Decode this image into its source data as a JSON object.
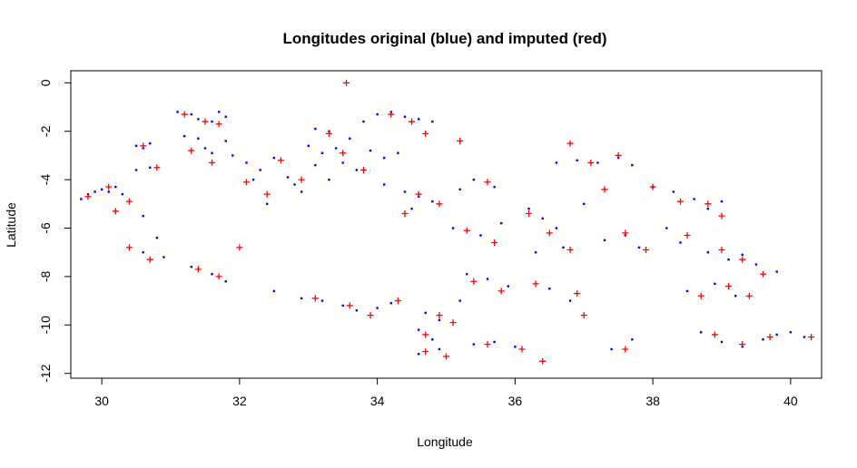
{
  "chart_data": {
    "type": "scatter",
    "title": "Longitudes original (blue) and imputed (red)",
    "xlabel": "Longitude",
    "ylabel": "Latitude",
    "xlim": [
      29.55,
      40.45
    ],
    "ylim": [
      -12.2,
      0.5
    ],
    "xticks": [
      "30",
      "32",
      "34",
      "36",
      "38",
      "40"
    ],
    "yticks": [
      "0",
      "-2",
      "-4",
      "-6",
      "-8",
      "-10",
      "-12"
    ],
    "grid": false,
    "legend": "none",
    "colors": {
      "original": "#0000ff",
      "imputed": "#ff0000"
    },
    "markers": {
      "original": "dot",
      "imputed": "plus"
    },
    "series": [
      {
        "role": "original",
        "values": [
          [
            29.7,
            -4.8
          ],
          [
            29.8,
            -4.6
          ],
          [
            29.9,
            -4.5
          ],
          [
            30.0,
            -4.4
          ],
          [
            30.1,
            -4.5
          ],
          [
            30.2,
            -4.3
          ],
          [
            30.3,
            -4.6
          ],
          [
            30.5,
            -2.6
          ],
          [
            30.6,
            -2.7
          ],
          [
            30.7,
            -2.5
          ],
          [
            30.5,
            -3.6
          ],
          [
            30.7,
            -3.5
          ],
          [
            30.6,
            -5.5
          ],
          [
            30.8,
            -6.4
          ],
          [
            30.6,
            -7.0
          ],
          [
            30.9,
            -7.2
          ],
          [
            31.1,
            -1.2
          ],
          [
            31.3,
            -1.3
          ],
          [
            31.4,
            -1.5
          ],
          [
            31.2,
            -2.2
          ],
          [
            31.4,
            -2.3
          ],
          [
            31.7,
            -1.2
          ],
          [
            31.8,
            -1.4
          ],
          [
            31.6,
            -1.6
          ],
          [
            31.5,
            -2.7
          ],
          [
            31.8,
            -2.4
          ],
          [
            31.6,
            -2.9
          ],
          [
            31.9,
            -3.0
          ],
          [
            31.3,
            -7.6
          ],
          [
            31.6,
            -7.9
          ],
          [
            31.8,
            -8.2
          ],
          [
            32.1,
            -3.3
          ],
          [
            32.3,
            -3.6
          ],
          [
            32.5,
            -3.1
          ],
          [
            32.2,
            -4.0
          ],
          [
            32.7,
            -3.9
          ],
          [
            32.9,
            -4.5
          ],
          [
            32.4,
            -5.0
          ],
          [
            32.8,
            -4.2
          ],
          [
            32.5,
            -8.6
          ],
          [
            32.9,
            -8.9
          ],
          [
            33.1,
            -1.9
          ],
          [
            33.3,
            -2.0
          ],
          [
            33.0,
            -2.6
          ],
          [
            33.2,
            -2.9
          ],
          [
            33.4,
            -2.7
          ],
          [
            33.6,
            -2.3
          ],
          [
            33.1,
            -3.4
          ],
          [
            33.5,
            -3.3
          ],
          [
            33.3,
            -4.0
          ],
          [
            33.7,
            -3.6
          ],
          [
            33.8,
            -1.6
          ],
          [
            34.0,
            -1.3
          ],
          [
            34.2,
            -1.2
          ],
          [
            34.4,
            -1.4
          ],
          [
            34.6,
            -1.5
          ],
          [
            34.8,
            -1.6
          ],
          [
            33.9,
            -2.8
          ],
          [
            34.1,
            -3.1
          ],
          [
            34.3,
            -2.9
          ],
          [
            33.2,
            -9.0
          ],
          [
            33.5,
            -9.2
          ],
          [
            33.7,
            -9.4
          ],
          [
            34.0,
            -9.3
          ],
          [
            34.2,
            -9.1
          ],
          [
            34.1,
            -4.2
          ],
          [
            34.4,
            -4.5
          ],
          [
            34.6,
            -4.7
          ],
          [
            34.8,
            -4.9
          ],
          [
            34.5,
            -5.2
          ],
          [
            34.7,
            -9.5
          ],
          [
            34.9,
            -9.8
          ],
          [
            34.6,
            -10.2
          ],
          [
            34.8,
            -10.6
          ],
          [
            34.6,
            -11.2
          ],
          [
            34.9,
            -11.0
          ],
          [
            35.2,
            -4.4
          ],
          [
            35.4,
            -4.0
          ],
          [
            35.7,
            -4.3
          ],
          [
            35.1,
            -6.0
          ],
          [
            35.5,
            -6.3
          ],
          [
            35.8,
            -5.8
          ],
          [
            35.3,
            -7.9
          ],
          [
            35.6,
            -8.1
          ],
          [
            35.9,
            -8.4
          ],
          [
            35.2,
            -9.0
          ],
          [
            35.4,
            -10.8
          ],
          [
            35.7,
            -10.7
          ],
          [
            36.0,
            -10.9
          ],
          [
            36.2,
            -5.2
          ],
          [
            36.4,
            -5.6
          ],
          [
            36.6,
            -6.0
          ],
          [
            36.3,
            -7.0
          ],
          [
            36.7,
            -6.8
          ],
          [
            36.5,
            -8.5
          ],
          [
            36.8,
            -9.0
          ],
          [
            36.6,
            -3.3
          ],
          [
            36.9,
            -3.2
          ],
          [
            37.2,
            -3.3
          ],
          [
            37.5,
            -3.1
          ],
          [
            37.7,
            -3.4
          ],
          [
            37.0,
            -5.0
          ],
          [
            37.3,
            -6.5
          ],
          [
            37.6,
            -6.3
          ],
          [
            37.8,
            -6.8
          ],
          [
            37.4,
            -11.0
          ],
          [
            37.7,
            -10.6
          ],
          [
            38.0,
            -4.3
          ],
          [
            38.3,
            -4.5
          ],
          [
            38.6,
            -4.8
          ],
          [
            38.8,
            -5.2
          ],
          [
            39.0,
            -4.9
          ],
          [
            38.2,
            -6.0
          ],
          [
            38.4,
            -6.6
          ],
          [
            38.8,
            -7.0
          ],
          [
            39.1,
            -7.3
          ],
          [
            39.3,
            -7.1
          ],
          [
            39.5,
            -7.5
          ],
          [
            38.5,
            -8.6
          ],
          [
            38.9,
            -8.3
          ],
          [
            39.2,
            -8.8
          ],
          [
            38.7,
            -10.3
          ],
          [
            39.0,
            -10.7
          ],
          [
            39.3,
            -10.9
          ],
          [
            39.6,
            -10.6
          ],
          [
            39.8,
            -10.4
          ],
          [
            40.0,
            -10.3
          ],
          [
            40.2,
            -10.5
          ],
          [
            39.8,
            -7.8
          ]
        ]
      },
      {
        "role": "imputed",
        "values": [
          [
            33.55,
            0.0
          ],
          [
            29.8,
            -4.7
          ],
          [
            30.1,
            -4.3
          ],
          [
            30.4,
            -4.9
          ],
          [
            30.2,
            -5.3
          ],
          [
            30.6,
            -2.6
          ],
          [
            30.8,
            -3.5
          ],
          [
            30.4,
            -6.8
          ],
          [
            30.7,
            -7.3
          ],
          [
            31.2,
            -1.3
          ],
          [
            31.5,
            -1.6
          ],
          [
            31.7,
            -1.7
          ],
          [
            31.3,
            -2.8
          ],
          [
            31.6,
            -3.3
          ],
          [
            32.0,
            -6.8
          ],
          [
            31.4,
            -7.7
          ],
          [
            31.7,
            -8.0
          ],
          [
            32.1,
            -4.1
          ],
          [
            32.6,
            -3.2
          ],
          [
            32.4,
            -4.6
          ],
          [
            32.9,
            -4.0
          ],
          [
            33.3,
            -2.1
          ],
          [
            33.5,
            -2.9
          ],
          [
            33.8,
            -3.6
          ],
          [
            34.2,
            -1.3
          ],
          [
            34.5,
            -1.6
          ],
          [
            34.7,
            -2.1
          ],
          [
            33.1,
            -8.9
          ],
          [
            33.6,
            -9.2
          ],
          [
            33.9,
            -9.6
          ],
          [
            34.3,
            -9.0
          ],
          [
            34.6,
            -4.6
          ],
          [
            34.9,
            -5.0
          ],
          [
            34.4,
            -5.4
          ],
          [
            34.9,
            -9.6
          ],
          [
            34.7,
            -10.4
          ],
          [
            34.7,
            -11.1
          ],
          [
            35.0,
            -11.3
          ],
          [
            35.2,
            -2.4
          ],
          [
            35.6,
            -4.1
          ],
          [
            35.3,
            -6.1
          ],
          [
            35.7,
            -6.6
          ],
          [
            35.4,
            -8.2
          ],
          [
            35.8,
            -8.6
          ],
          [
            35.1,
            -9.9
          ],
          [
            35.6,
            -10.8
          ],
          [
            36.1,
            -11.0
          ],
          [
            36.4,
            -11.5
          ],
          [
            36.2,
            -5.4
          ],
          [
            36.5,
            -6.2
          ],
          [
            36.8,
            -6.9
          ],
          [
            36.3,
            -8.3
          ],
          [
            36.9,
            -8.7
          ],
          [
            37.0,
            -9.6
          ],
          [
            36.8,
            -2.5
          ],
          [
            37.1,
            -3.3
          ],
          [
            37.5,
            -3.0
          ],
          [
            37.3,
            -4.4
          ],
          [
            37.6,
            -6.2
          ],
          [
            37.9,
            -6.9
          ],
          [
            37.6,
            -11.0
          ],
          [
            38.0,
            -4.3
          ],
          [
            38.4,
            -4.9
          ],
          [
            38.8,
            -5.0
          ],
          [
            39.0,
            -5.5
          ],
          [
            38.5,
            -6.3
          ],
          [
            39.0,
            -6.9
          ],
          [
            39.3,
            -7.3
          ],
          [
            39.6,
            -7.9
          ],
          [
            38.7,
            -8.8
          ],
          [
            39.1,
            -8.4
          ],
          [
            39.4,
            -8.8
          ],
          [
            38.9,
            -10.4
          ],
          [
            39.3,
            -10.8
          ],
          [
            39.7,
            -10.5
          ],
          [
            40.3,
            -10.5
          ]
        ]
      }
    ]
  }
}
